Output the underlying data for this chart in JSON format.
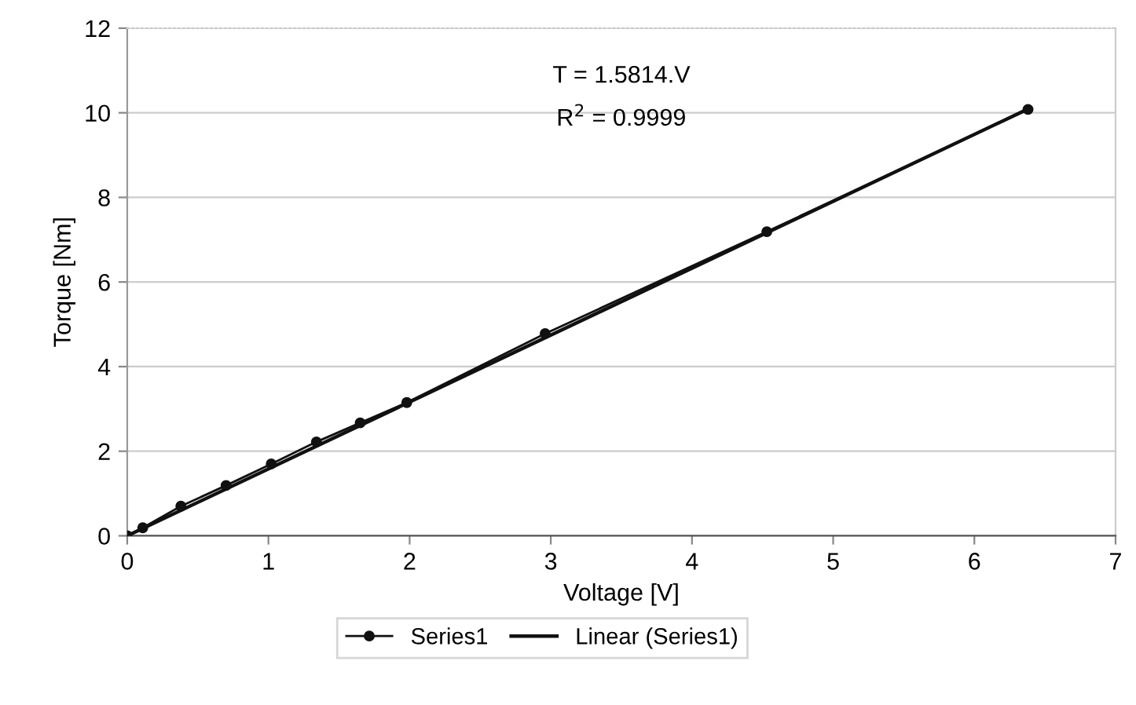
{
  "chart_data": {
    "type": "line",
    "xlabel": "Voltage [V]",
    "ylabel": "Torque [Nm]",
    "xlim": [
      0,
      7
    ],
    "xticks": [
      0,
      1,
      2,
      3,
      4,
      5,
      6,
      7
    ],
    "ylim": [
      0,
      12
    ],
    "yticks": [
      0,
      2,
      4,
      6,
      8,
      10,
      12
    ],
    "grid": "y",
    "legend": "bottom",
    "annotations": [
      "T = 1.5814.V",
      "R$^{2}$ = 0.9999"
    ],
    "series": [
      {
        "name": "Series1",
        "color": "#111111",
        "marker": "circle",
        "x": [
          0,
          0.11,
          0.38,
          0.7,
          1.02,
          1.34,
          1.65,
          1.98,
          2.96,
          4.53,
          6.38
        ],
        "values": [
          0,
          0.19,
          0.7,
          1.19,
          1.7,
          2.22,
          2.67,
          3.15,
          4.78,
          7.19,
          10.08
        ]
      },
      {
        "name": "Linear (Series1)",
        "type": "line",
        "color": "#111111",
        "marker": "none",
        "x": [
          0,
          6.38
        ],
        "values": [
          0,
          10.09
        ]
      }
    ]
  }
}
